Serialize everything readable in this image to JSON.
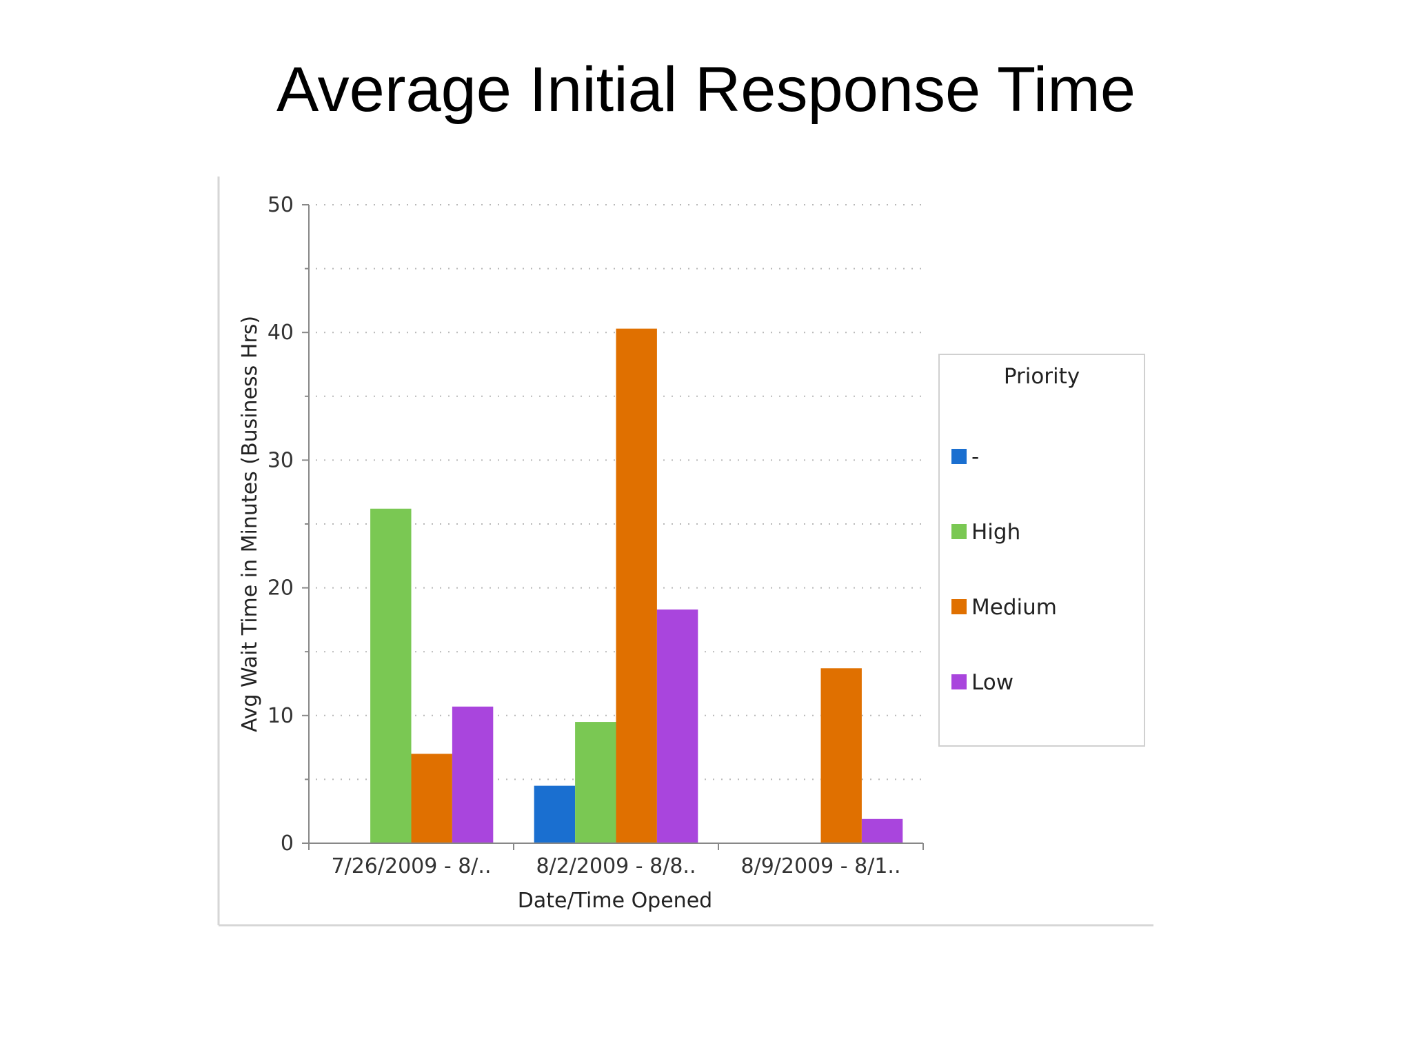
{
  "slide": {
    "title": "Average Initial Response Time"
  },
  "chart_data": {
    "type": "bar",
    "title": "",
    "xlabel": "Date/Time Opened",
    "ylabel": "Avg Wait Time in Minutes (Business Hrs)",
    "ylim": [
      0,
      50
    ],
    "yticks": [
      0,
      10,
      20,
      30,
      40,
      50
    ],
    "grid": true,
    "legend": {
      "title": "Priority",
      "placement": "right"
    },
    "categories": [
      "7/26/2009 - 8/..",
      "8/2/2009 - 8/8..",
      "8/9/2009 - 8/1.."
    ],
    "series": [
      {
        "name": "-",
        "color": "#1a6fd0",
        "values": [
          null,
          4.5,
          null
        ]
      },
      {
        "name": "High",
        "color": "#7ac853",
        "values": [
          26.2,
          9.5,
          null
        ]
      },
      {
        "name": "Medium",
        "color": "#e07000",
        "values": [
          7.0,
          40.3,
          13.7
        ]
      },
      {
        "name": "Low",
        "color": "#a945dd",
        "values": [
          10.7,
          18.3,
          1.9
        ]
      }
    ]
  }
}
